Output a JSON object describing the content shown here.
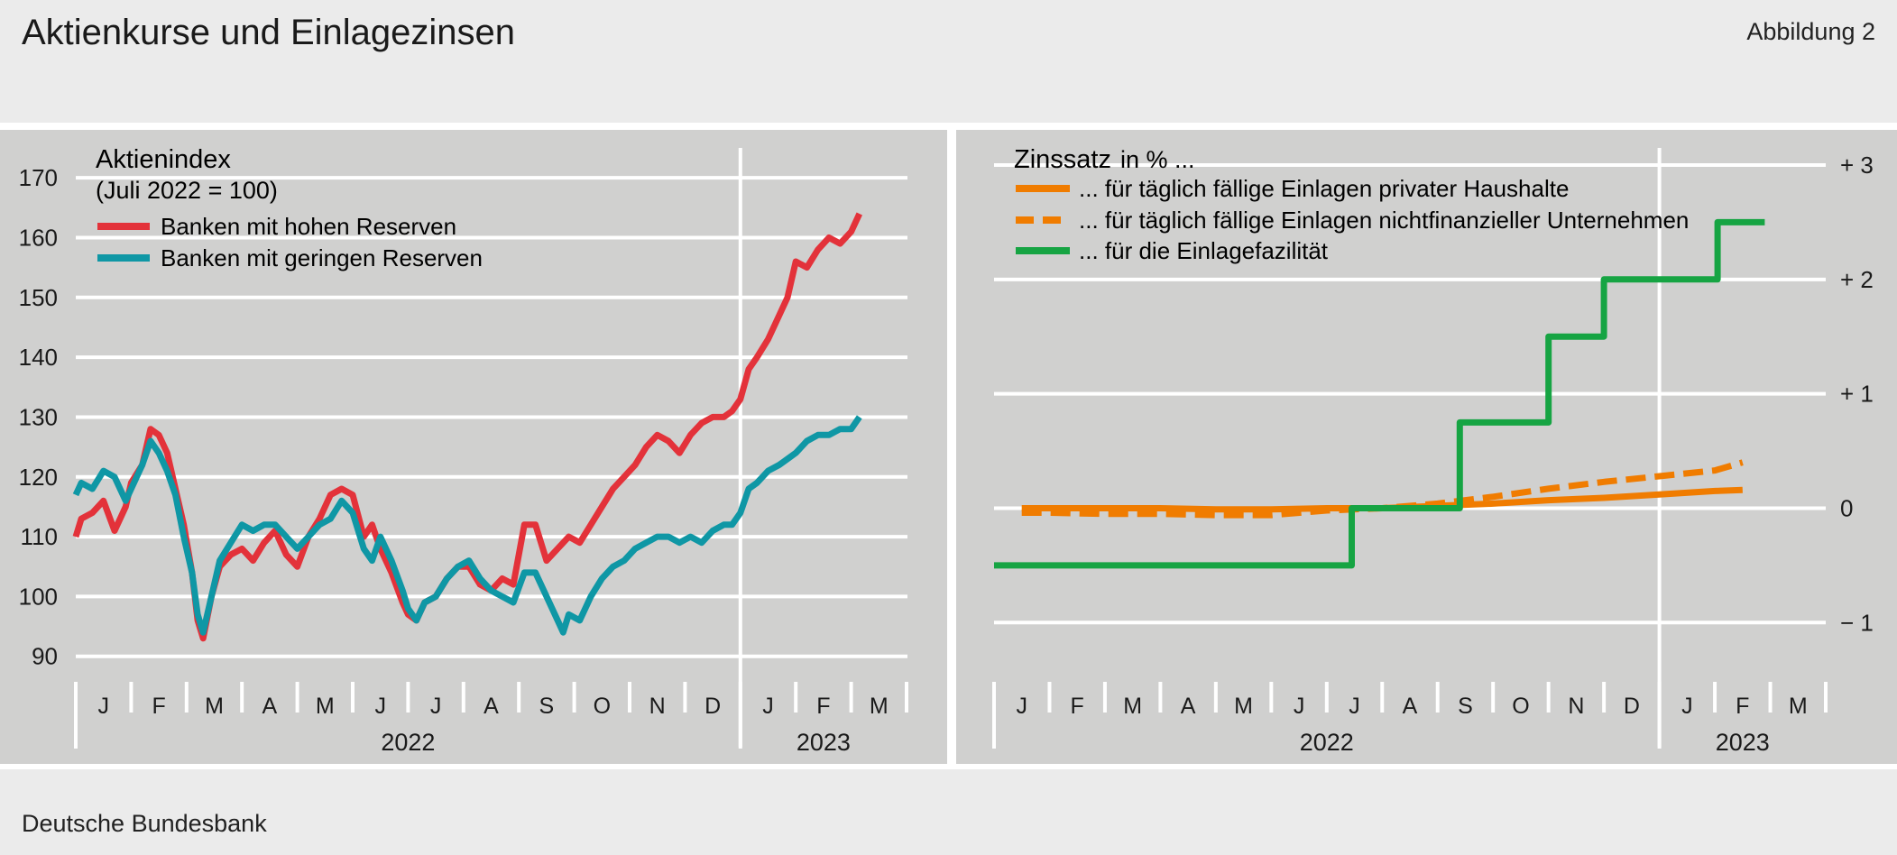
{
  "header": {
    "title": "Aktienkurse und Einlagezinsen",
    "figure_label": "Abbildung 2"
  },
  "footer": {
    "source": "Deutsche Bundesbank"
  },
  "colors": {
    "red": "#e3323a",
    "teal": "#0f97a5",
    "orange": "#f07c00",
    "green": "#16a443",
    "panel": "#d0d0cf",
    "grid": "#ffffff"
  },
  "chart_data": [
    {
      "type": "line",
      "title": "Aktienindex",
      "subtitle": "(Juli 2022 = 100)",
      "ylim": [
        88,
        175
      ],
      "yticks": [
        90,
        100,
        110,
        120,
        130,
        140,
        150,
        160,
        170
      ],
      "month_labels": [
        "J",
        "F",
        "M",
        "A",
        "M",
        "J",
        "J",
        "A",
        "S",
        "O",
        "N",
        "D",
        "J",
        "F",
        "M"
      ],
      "year_labels": [
        {
          "label": "2022",
          "start": 0,
          "end": 12
        },
        {
          "label": "2023",
          "start": 12,
          "end": 15
        }
      ],
      "xlim_months": [
        0,
        15
      ],
      "grid": true,
      "legend_position": "top-left",
      "series": [
        {
          "name": "Banken mit hohen Reserven",
          "color": "#e3323a",
          "points": [
            [
              0,
              110
            ],
            [
              0.1,
              113
            ],
            [
              0.3,
              114
            ],
            [
              0.5,
              116
            ],
            [
              0.7,
              111
            ],
            [
              0.9,
              115
            ],
            [
              1.0,
              119
            ],
            [
              1.2,
              122
            ],
            [
              1.35,
              128
            ],
            [
              1.5,
              127
            ],
            [
              1.65,
              124
            ],
            [
              1.8,
              118
            ],
            [
              1.95,
              112
            ],
            [
              2.1,
              104
            ],
            [
              2.2,
              96
            ],
            [
              2.3,
              93
            ],
            [
              2.45,
              100
            ],
            [
              2.6,
              105
            ],
            [
              2.8,
              107
            ],
            [
              3.0,
              108
            ],
            [
              3.2,
              106
            ],
            [
              3.4,
              109
            ],
            [
              3.6,
              111
            ],
            [
              3.8,
              107
            ],
            [
              4.0,
              105
            ],
            [
              4.2,
              110
            ],
            [
              4.4,
              113
            ],
            [
              4.6,
              117
            ],
            [
              4.8,
              118
            ],
            [
              5.0,
              117
            ],
            [
              5.2,
              110
            ],
            [
              5.35,
              112
            ],
            [
              5.5,
              108
            ],
            [
              5.7,
              104
            ],
            [
              5.9,
              99
            ],
            [
              6.0,
              97
            ],
            [
              6.15,
              96
            ],
            [
              6.3,
              99
            ],
            [
              6.5,
              100
            ],
            [
              6.7,
              103
            ],
            [
              6.9,
              105
            ],
            [
              7.1,
              105
            ],
            [
              7.3,
              102
            ],
            [
              7.5,
              101
            ],
            [
              7.7,
              103
            ],
            [
              7.9,
              102
            ],
            [
              8.1,
              112
            ],
            [
              8.3,
              112
            ],
            [
              8.5,
              106
            ],
            [
              8.7,
              108
            ],
            [
              8.9,
              110
            ],
            [
              9.1,
              109
            ],
            [
              9.3,
              112
            ],
            [
              9.5,
              115
            ],
            [
              9.7,
              118
            ],
            [
              9.9,
              120
            ],
            [
              10.1,
              122
            ],
            [
              10.3,
              125
            ],
            [
              10.5,
              127
            ],
            [
              10.7,
              126
            ],
            [
              10.9,
              124
            ],
            [
              11.1,
              127
            ],
            [
              11.3,
              129
            ],
            [
              11.5,
              130
            ],
            [
              11.7,
              130
            ],
            [
              11.85,
              131
            ],
            [
              12.0,
              133
            ],
            [
              12.15,
              138
            ],
            [
              12.3,
              140
            ],
            [
              12.5,
              143
            ],
            [
              12.7,
              147
            ],
            [
              12.85,
              150
            ],
            [
              13.0,
              156
            ],
            [
              13.2,
              155
            ],
            [
              13.4,
              158
            ],
            [
              13.6,
              160
            ],
            [
              13.8,
              159
            ],
            [
              14.0,
              161
            ],
            [
              14.15,
              164
            ]
          ]
        },
        {
          "name": "Banken mit geringen Reserven",
          "color": "#0f97a5",
          "points": [
            [
              0,
              117
            ],
            [
              0.1,
              119
            ],
            [
              0.3,
              118
            ],
            [
              0.5,
              121
            ],
            [
              0.7,
              120
            ],
            [
              0.9,
              116
            ],
            [
              1.0,
              118
            ],
            [
              1.2,
              122
            ],
            [
              1.35,
              126
            ],
            [
              1.5,
              124
            ],
            [
              1.65,
              121
            ],
            [
              1.8,
              117
            ],
            [
              1.95,
              110
            ],
            [
              2.1,
              104
            ],
            [
              2.2,
              97
            ],
            [
              2.3,
              94
            ],
            [
              2.45,
              100
            ],
            [
              2.6,
              106
            ],
            [
              2.8,
              109
            ],
            [
              3.0,
              112
            ],
            [
              3.2,
              111
            ],
            [
              3.4,
              112
            ],
            [
              3.6,
              112
            ],
            [
              3.8,
              110
            ],
            [
              4.0,
              108
            ],
            [
              4.2,
              110
            ],
            [
              4.4,
              112
            ],
            [
              4.6,
              113
            ],
            [
              4.8,
              116
            ],
            [
              5.0,
              114
            ],
            [
              5.2,
              108
            ],
            [
              5.35,
              106
            ],
            [
              5.5,
              110
            ],
            [
              5.7,
              106
            ],
            [
              5.9,
              101
            ],
            [
              6.0,
              98
            ],
            [
              6.15,
              96
            ],
            [
              6.3,
              99
            ],
            [
              6.5,
              100
            ],
            [
              6.7,
              103
            ],
            [
              6.9,
              105
            ],
            [
              7.1,
              106
            ],
            [
              7.3,
              103
            ],
            [
              7.5,
              101
            ],
            [
              7.7,
              100
            ],
            [
              7.9,
              99
            ],
            [
              8.1,
              104
            ],
            [
              8.3,
              104
            ],
            [
              8.5,
              100
            ],
            [
              8.7,
              96
            ],
            [
              8.8,
              94
            ],
            [
              8.9,
              97
            ],
            [
              9.1,
              96
            ],
            [
              9.3,
              100
            ],
            [
              9.5,
              103
            ],
            [
              9.7,
              105
            ],
            [
              9.9,
              106
            ],
            [
              10.1,
              108
            ],
            [
              10.3,
              109
            ],
            [
              10.5,
              110
            ],
            [
              10.7,
              110
            ],
            [
              10.9,
              109
            ],
            [
              11.1,
              110
            ],
            [
              11.3,
              109
            ],
            [
              11.5,
              111
            ],
            [
              11.7,
              112
            ],
            [
              11.85,
              112
            ],
            [
              12.0,
              114
            ],
            [
              12.15,
              118
            ],
            [
              12.3,
              119
            ],
            [
              12.5,
              121
            ],
            [
              12.7,
              122
            ],
            [
              12.85,
              123
            ],
            [
              13.0,
              124
            ],
            [
              13.2,
              126
            ],
            [
              13.4,
              127
            ],
            [
              13.6,
              127
            ],
            [
              13.8,
              128
            ],
            [
              14.0,
              128
            ],
            [
              14.15,
              130
            ]
          ]
        }
      ]
    },
    {
      "type": "line",
      "title": "Zinssatz",
      "title_suffix": "in % ...",
      "ylim": [
        -1.4,
        3.15
      ],
      "yticks": [
        -1,
        0,
        1,
        2,
        3
      ],
      "ytick_labels": [
        "− 1",
        "0",
        "+ 1",
        "+ 2",
        "+ 3"
      ],
      "month_labels": [
        "J",
        "F",
        "M",
        "A",
        "M",
        "J",
        "J",
        "A",
        "S",
        "O",
        "N",
        "D",
        "J",
        "F",
        "M"
      ],
      "year_labels": [
        {
          "label": "2022",
          "start": 0,
          "end": 12
        },
        {
          "label": "2023",
          "start": 12,
          "end": 15
        }
      ],
      "xlim_months": [
        0,
        15
      ],
      "grid": true,
      "legend_position": "top-left",
      "series": [
        {
          "name": "... für täglich fällige Einlagen privater Haushalte",
          "color": "#f07c00",
          "dash": false,
          "points": [
            [
              0.5,
              0.0
            ],
            [
              1,
              0.0
            ],
            [
              2,
              0.0
            ],
            [
              3,
              0.0
            ],
            [
              4,
              -0.01
            ],
            [
              5,
              -0.01
            ],
            [
              6,
              0.0
            ],
            [
              7,
              0.0
            ],
            [
              8,
              0.02
            ],
            [
              9,
              0.04
            ],
            [
              10,
              0.07
            ],
            [
              11,
              0.09
            ],
            [
              12,
              0.12
            ],
            [
              13,
              0.15
            ],
            [
              13.5,
              0.16
            ]
          ]
        },
        {
          "name": "... für täglich fällige Einlagen nichtfinanzieller Unternehmen",
          "color": "#f07c00",
          "dash": true,
          "points": [
            [
              0.5,
              -0.04
            ],
            [
              1,
              -0.04
            ],
            [
              2,
              -0.05
            ],
            [
              3,
              -0.05
            ],
            [
              4,
              -0.06
            ],
            [
              5,
              -0.06
            ],
            [
              6,
              -0.02
            ],
            [
              7,
              0.0
            ],
            [
              8,
              0.04
            ],
            [
              9,
              0.1
            ],
            [
              10,
              0.17
            ],
            [
              11,
              0.23
            ],
            [
              12,
              0.28
            ],
            [
              13,
              0.33
            ],
            [
              13.5,
              0.4
            ]
          ]
        },
        {
          "name": "... für die Einlagefazilität",
          "color": "#16a443",
          "dash": false,
          "points": [
            [
              0,
              -0.5
            ],
            [
              6.45,
              -0.5
            ],
            [
              6.45,
              0.0
            ],
            [
              8.4,
              0.0
            ],
            [
              8.4,
              0.75
            ],
            [
              10.0,
              0.75
            ],
            [
              10.0,
              1.5
            ],
            [
              11.0,
              1.5
            ],
            [
              11.0,
              2.0
            ],
            [
              13.05,
              2.0
            ],
            [
              13.05,
              2.5
            ],
            [
              13.9,
              2.5
            ]
          ]
        }
      ]
    }
  ]
}
